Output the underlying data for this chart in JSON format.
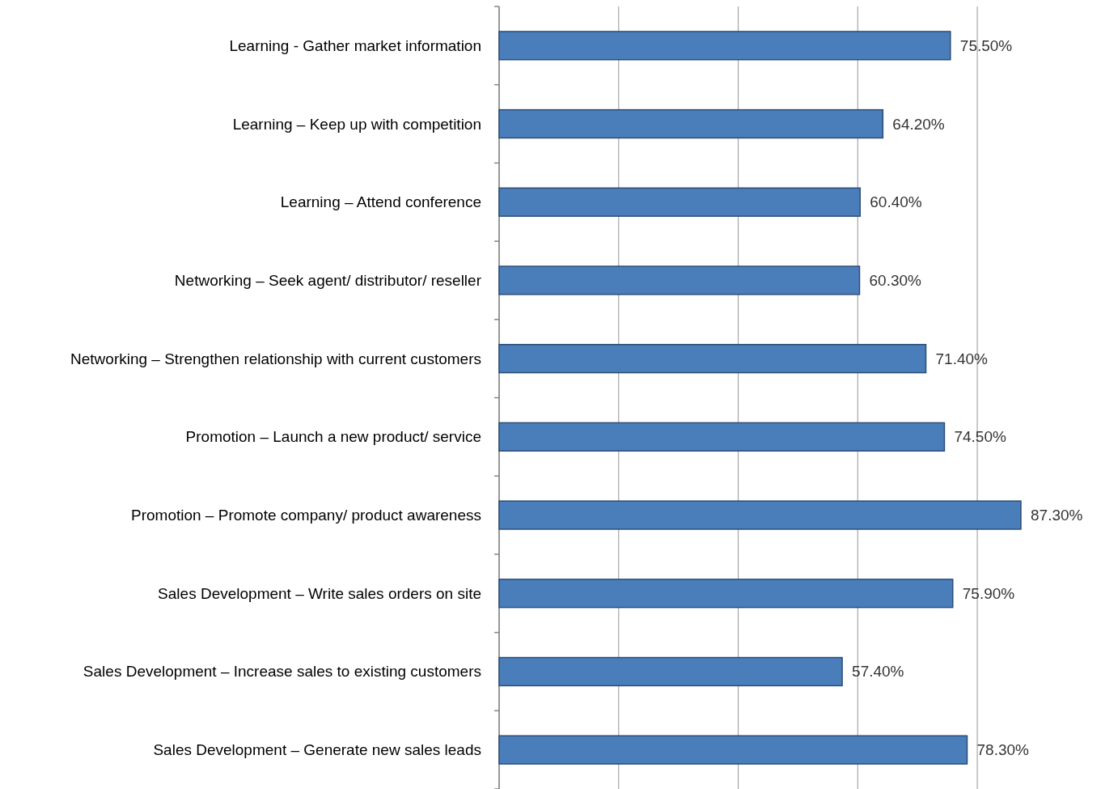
{
  "chart_data": {
    "type": "bar",
    "orientation": "horizontal",
    "categories": [
      "Learning - Gather market information",
      "Learning – Keep up with competition",
      "Learning – Attend conference",
      "Networking – Seek agent/ distributor/ reseller",
      "Networking – Strengthen relationship with current customers",
      "Promotion – Launch a new product/ service",
      "Promotion – Promote company/ product awareness",
      "Sales Development – Write sales orders on site",
      "Sales Development – Increase sales to existing customers",
      "Sales Development – Generate new sales leads"
    ],
    "values": [
      75.5,
      64.2,
      60.4,
      60.3,
      71.4,
      74.5,
      87.3,
      75.9,
      57.4,
      78.3
    ],
    "value_labels": [
      "75.50%",
      "64.20%",
      "60.40%",
      "60.30%",
      "71.40%",
      "74.50%",
      "87.30%",
      "75.90%",
      "57.40%",
      "78.30%"
    ],
    "color": "#4a7ebb",
    "xticks": [
      {
        "value": 0,
        "label": null
      },
      {
        "value": 20,
        "label": null
      },
      {
        "value": 40,
        "label": null
      },
      {
        "value": 60,
        "label": null
      },
      {
        "value": 80,
        "label": null
      }
    ],
    "grid": "x"
  }
}
